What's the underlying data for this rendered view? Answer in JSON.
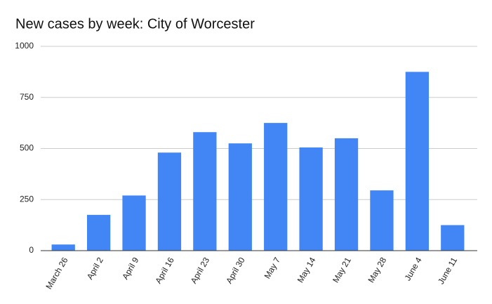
{
  "chart_data": {
    "type": "bar",
    "title": "New cases by week: City of Worcester",
    "categories": [
      "March 26",
      "April 2",
      "April 9",
      "April 16",
      "April 23",
      "April 30",
      "May 7",
      "May 14",
      "May 21",
      "May 28",
      "June 4",
      "June 11"
    ],
    "values": [
      30,
      175,
      270,
      480,
      580,
      525,
      625,
      505,
      550,
      295,
      875,
      125
    ],
    "color": "#4285f4",
    "ylim": [
      0,
      1000
    ],
    "yticks": [
      0,
      250,
      500,
      750,
      1000
    ],
    "grid": true
  }
}
